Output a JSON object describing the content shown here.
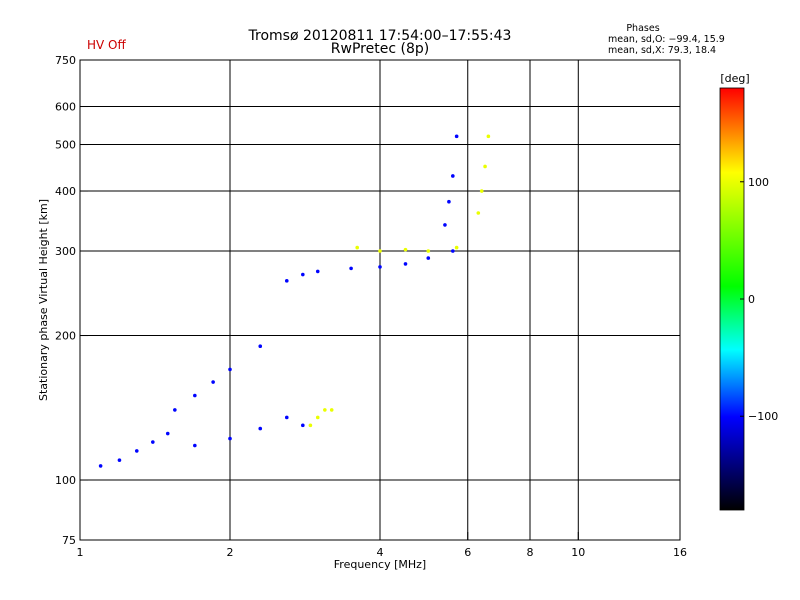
{
  "status_label": "HV Off",
  "title_line1": "Tromsø 20120811 17:54:00–17:55:43",
  "title_line2": "RwPretec (8p)",
  "phases": {
    "heading": "Phases",
    "line_o": "mean, sd,O: −99.4, 15.9",
    "line_x": "mean, sd,X:  79.3, 18.4"
  },
  "chart_data": {
    "type": "scatter",
    "xlabel": "Frequency [MHz]",
    "ylabel": "Stationary phase Virtual Height [km]",
    "x_scale": "log",
    "y_scale": "log",
    "xlim": [
      1,
      16
    ],
    "ylim": [
      75,
      750
    ],
    "x_ticks": [
      1,
      2,
      4,
      6,
      8,
      10,
      16
    ],
    "x_tick_labels": [
      "1",
      "2",
      "4",
      "6",
      "8",
      "10",
      "16"
    ],
    "x_gridlines": [
      2,
      4,
      6,
      8,
      10
    ],
    "y_ticks": [
      75,
      100,
      200,
      300,
      400,
      500,
      600,
      750
    ],
    "y_tick_labels": [
      "75",
      "100",
      "200",
      "300",
      "400",
      "500",
      "600",
      "750"
    ],
    "y_gridlines": [
      100,
      200,
      300,
      400,
      500,
      600
    ],
    "grid": true,
    "colorbar": {
      "label": "[deg]",
      "range": [
        -180,
        180
      ],
      "ticks": [
        100,
        0,
        -100
      ],
      "tick_labels": [
        "100",
        "0",
        "−100"
      ]
    },
    "traces": [
      {
        "phase": -100,
        "x": [
          1.1,
          1.2,
          1.3,
          1.4,
          1.5
        ],
        "y": [
          107,
          110,
          115,
          120,
          125
        ]
      },
      {
        "phase": -100,
        "x": [
          1.55,
          1.7,
          1.85,
          2.0,
          2.3
        ],
        "y": [
          140,
          150,
          160,
          170,
          190
        ]
      },
      {
        "phase": -100,
        "x": [
          1.7,
          2.0,
          2.3,
          2.6,
          2.8
        ],
        "y": [
          118,
          122,
          128,
          135,
          130
        ]
      },
      {
        "phase": -100,
        "x": [
          2.6,
          2.8,
          3.0,
          3.5,
          4.0,
          4.5,
          5.0,
          5.6
        ],
        "y": [
          260,
          268,
          272,
          276,
          278,
          282,
          290,
          300
        ]
      },
      {
        "phase": -100,
        "x": [
          5.4,
          5.5,
          5.6,
          5.7
        ],
        "y": [
          340,
          380,
          430,
          520
        ]
      },
      {
        "phase": 100,
        "x": [
          3.6,
          4.0,
          4.5,
          5.0,
          5.7
        ],
        "y": [
          305,
          300,
          302,
          300,
          305
        ]
      },
      {
        "phase": 100,
        "x": [
          6.3,
          6.4,
          6.5,
          6.6
        ],
        "y": [
          360,
          400,
          450,
          520
        ]
      },
      {
        "phase": 100,
        "x": [
          2.9,
          3.0,
          3.1,
          3.2
        ],
        "y": [
          130,
          135,
          140,
          140
        ]
      }
    ]
  }
}
